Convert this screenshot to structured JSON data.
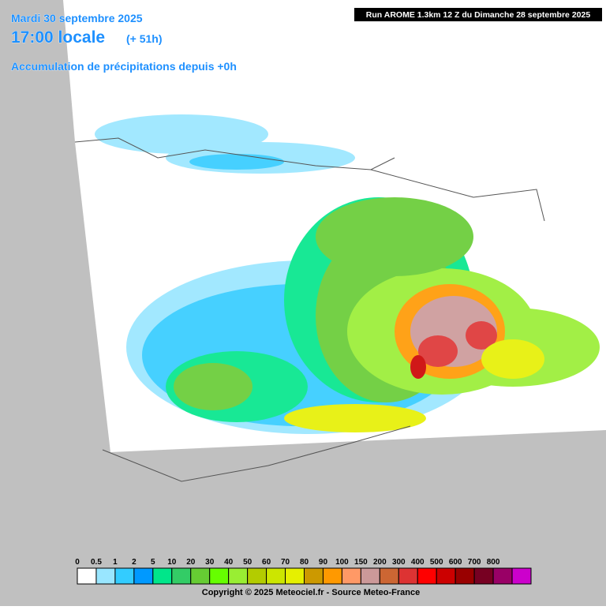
{
  "header": {
    "date": "Mardi 30 septembre 2025",
    "time": "17:00 locale",
    "lead": "(+ 51h)",
    "subtitle": "Accumulation de précipitations depuis +0h"
  },
  "run_info": "Run AROME 1.3km 12 Z du Dimanche 28 septembre 2025",
  "legend": {
    "labels": [
      0,
      0.5,
      1,
      2,
      5,
      10,
      20,
      30,
      40,
      50,
      60,
      70,
      80,
      90,
      100,
      150,
      200,
      300,
      400,
      500,
      600,
      700,
      800
    ],
    "colors": [
      "#ffffff",
      "#99e6ff",
      "#33ccff",
      "#0099ff",
      "#00e68a",
      "#33cc66",
      "#66cc33",
      "#66ff00",
      "#99ee33",
      "#b3cc00",
      "#cce600",
      "#e6f000",
      "#cc9900",
      "#ff9900",
      "#ff9966",
      "#cc9999",
      "#cc6633",
      "#dd3333",
      "#ff0000",
      "#cc0000",
      "#990000",
      "#770022",
      "#990066",
      "#cc00cc"
    ]
  },
  "copyright": "Copyright © 2025 Meteociel.fr - Source Meteo-France"
}
